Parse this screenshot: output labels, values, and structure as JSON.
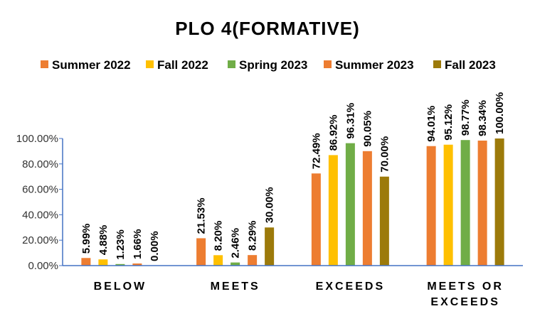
{
  "chart_data": {
    "type": "bar",
    "title": "PLO 4(FORMATIVE)",
    "categories": [
      [
        "BELOW"
      ],
      [
        "MEETS"
      ],
      [
        "EXCEEDS"
      ],
      [
        "MEETS OR",
        "EXCEEDS"
      ]
    ],
    "series": [
      {
        "name": "Summer 2022",
        "color": "#ED7D31",
        "values": [
          5.99,
          21.53,
          72.49,
          94.01
        ],
        "labels": [
          "5.99%",
          "21.53%",
          "72.49%",
          "94.01%"
        ]
      },
      {
        "name": "Fall 2022",
        "color": "#FFC000",
        "values": [
          4.88,
          8.2,
          86.92,
          95.12
        ],
        "labels": [
          "4.88%",
          "8.20%",
          "86.92%",
          "95.12%"
        ]
      },
      {
        "name": "Spring 2023",
        "color": "#70AD47",
        "values": [
          1.23,
          2.46,
          96.31,
          98.77
        ],
        "labels": [
          "1.23%",
          "2.46%",
          "96.31%",
          "98.77%"
        ]
      },
      {
        "name": "Summer 2023",
        "color": "#ED7D31",
        "values": [
          1.66,
          8.29,
          90.05,
          98.34
        ],
        "labels": [
          "1.66%",
          "8.29%",
          "90.05%",
          "98.34%"
        ]
      },
      {
        "name": "Fall 2023",
        "color": "#9C7A0A",
        "values": [
          0.0,
          30.0,
          70.0,
          100.0
        ],
        "labels": [
          "0.00%",
          "30.00%",
          "70.00%",
          "100.00%"
        ]
      }
    ],
    "ylim": [
      0,
      100
    ],
    "yticks": [
      "0.00%",
      "20.00%",
      "40.00%",
      "60.00%",
      "80.00%",
      "100.00%"
    ],
    "ytick_values": [
      0,
      20,
      40,
      60,
      80,
      100
    ],
    "legend": "top",
    "grid": false,
    "xlabel": "",
    "ylabel": ""
  }
}
